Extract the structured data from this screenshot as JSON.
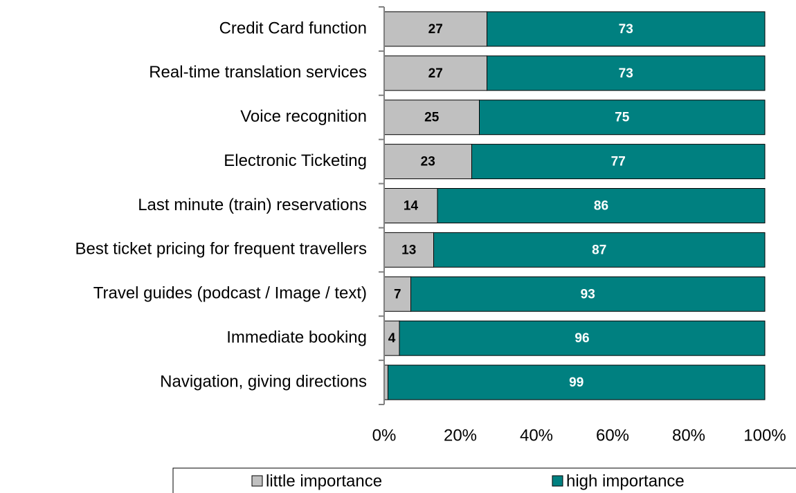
{
  "chart_data": {
    "type": "stacked_barh",
    "categories": [
      "Credit Card function",
      "Real-time translation services",
      "Voice recognition",
      "Electronic Ticketing",
      "Last minute (train) reservations",
      "Best ticket pricing for frequent travellers",
      "Travel guides (podcast / Image / text)",
      "Immediate booking",
      "Navigation, giving directions"
    ],
    "series": [
      {
        "name": "little importance",
        "color": "#c0c0c0",
        "values": [
          27,
          27,
          25,
          23,
          14,
          13,
          7,
          4,
          1
        ],
        "value_labels": [
          "27",
          "27",
          "25",
          "23",
          "14",
          "13",
          "7",
          "4",
          null
        ]
      },
      {
        "name": "high importance",
        "color": "#008080",
        "values": [
          73,
          73,
          75,
          77,
          86,
          87,
          93,
          96,
          99
        ],
        "value_labels": [
          "73",
          "73",
          "75",
          "77",
          "86",
          "87",
          "93",
          "96",
          "99"
        ]
      }
    ],
    "xlim": [
      0,
      100
    ],
    "xticks": [
      {
        "value": 0,
        "label": "0%"
      },
      {
        "value": 20,
        "label": "20%"
      },
      {
        "value": 40,
        "label": "40%"
      },
      {
        "value": 60,
        "label": "60%"
      },
      {
        "value": 80,
        "label": "80%"
      },
      {
        "value": 100,
        "label": "100%"
      }
    ],
    "legend": "bottom"
  }
}
